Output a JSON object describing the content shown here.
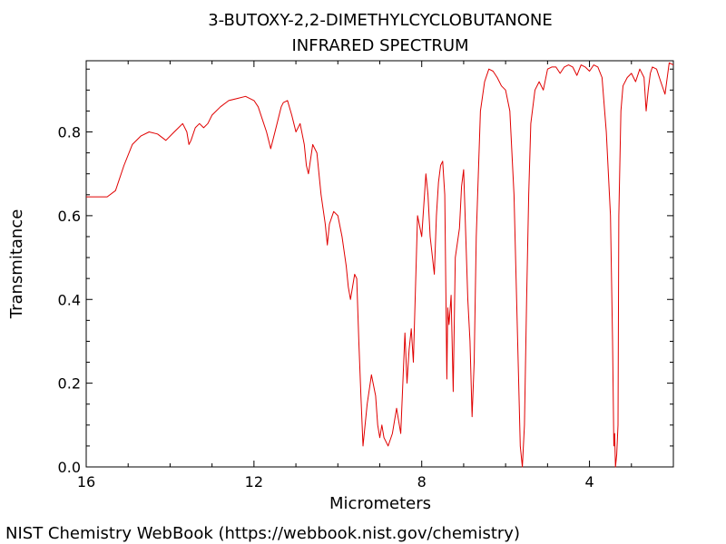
{
  "chart_data": {
    "type": "line",
    "title": "3-BUTOXY-2,2-DIMETHYLCYCLOBUTANONE",
    "subtitle": "INFRARED SPECTRUM",
    "xlabel": "Micrometers",
    "ylabel": "Transmitance",
    "xlim": [
      16,
      2
    ],
    "ylim": [
      0.0,
      0.97
    ],
    "x_ticks": [
      16,
      12,
      8,
      4
    ],
    "x_tick_labels": [
      "16",
      "12",
      "8",
      "4"
    ],
    "y_ticks": [
      0.0,
      0.2,
      0.4,
      0.6,
      0.8
    ],
    "y_tick_labels": [
      "0.0",
      "0.2",
      "0.4",
      "0.6",
      "0.8"
    ],
    "grid": false,
    "line_color": "#e00000",
    "series": [
      {
        "x": [
          16.0,
          15.5,
          15.3,
          15.1,
          14.9,
          14.7,
          14.5,
          14.3,
          14.1,
          13.9,
          13.8,
          13.7,
          13.6,
          13.55,
          13.5,
          13.4,
          13.3,
          13.2,
          13.1,
          13.0,
          12.8,
          12.6,
          12.4,
          12.2,
          12.0,
          11.9,
          11.8,
          11.7,
          11.65,
          11.6,
          11.5,
          11.4,
          11.35,
          11.3,
          11.2,
          11.1,
          11.0,
          10.9,
          10.8,
          10.75,
          10.7,
          10.6,
          10.5,
          10.4,
          10.3,
          10.25,
          10.2,
          10.1,
          10.0,
          9.9,
          9.8,
          9.75,
          9.7,
          9.6,
          9.55,
          9.5,
          9.45,
          9.4,
          9.3,
          9.2,
          9.1,
          9.05,
          9.0,
          8.95,
          8.9,
          8.8,
          8.7,
          8.6,
          8.5,
          8.45,
          8.4,
          8.35,
          8.3,
          8.25,
          8.2,
          8.1,
          8.0,
          7.9,
          7.85,
          7.8,
          7.7,
          7.65,
          7.6,
          7.55,
          7.5,
          7.45,
          7.4,
          7.38,
          7.35,
          7.3,
          7.25,
          7.2,
          7.1,
          7.05,
          7.0,
          6.9,
          6.85,
          6.8,
          6.75,
          6.7,
          6.6,
          6.5,
          6.4,
          6.3,
          6.2,
          6.1,
          6.0,
          5.9,
          5.8,
          5.75,
          5.7,
          5.65,
          5.6,
          5.55,
          5.5,
          5.45,
          5.4,
          5.3,
          5.2,
          5.1,
          5.0,
          4.9,
          4.8,
          4.7,
          4.6,
          4.5,
          4.4,
          4.3,
          4.2,
          4.1,
          4.0,
          3.9,
          3.8,
          3.7,
          3.6,
          3.5,
          3.45,
          3.42,
          3.4,
          3.38,
          3.35,
          3.32,
          3.3,
          3.25,
          3.2,
          3.1,
          3.0,
          2.9,
          2.8,
          2.7,
          2.65,
          2.6,
          2.55,
          2.5,
          2.4,
          2.3,
          2.2,
          2.1,
          2.0
        ],
        "y": [
          0.645,
          0.645,
          0.66,
          0.72,
          0.77,
          0.79,
          0.8,
          0.795,
          0.78,
          0.8,
          0.81,
          0.82,
          0.8,
          0.77,
          0.78,
          0.81,
          0.82,
          0.81,
          0.82,
          0.84,
          0.86,
          0.875,
          0.88,
          0.885,
          0.875,
          0.86,
          0.83,
          0.8,
          0.78,
          0.76,
          0.8,
          0.84,
          0.86,
          0.87,
          0.875,
          0.84,
          0.8,
          0.82,
          0.77,
          0.72,
          0.7,
          0.77,
          0.75,
          0.65,
          0.58,
          0.53,
          0.58,
          0.61,
          0.6,
          0.55,
          0.48,
          0.43,
          0.4,
          0.46,
          0.45,
          0.3,
          0.17,
          0.05,
          0.15,
          0.22,
          0.17,
          0.1,
          0.07,
          0.1,
          0.07,
          0.05,
          0.08,
          0.14,
          0.08,
          0.2,
          0.32,
          0.2,
          0.28,
          0.33,
          0.25,
          0.6,
          0.55,
          0.7,
          0.65,
          0.55,
          0.46,
          0.6,
          0.68,
          0.72,
          0.73,
          0.65,
          0.21,
          0.38,
          0.34,
          0.41,
          0.18,
          0.5,
          0.57,
          0.67,
          0.71,
          0.4,
          0.3,
          0.12,
          0.25,
          0.55,
          0.85,
          0.92,
          0.95,
          0.945,
          0.93,
          0.91,
          0.9,
          0.85,
          0.65,
          0.45,
          0.25,
          0.05,
          0.0,
          0.1,
          0.4,
          0.65,
          0.82,
          0.9,
          0.92,
          0.9,
          0.95,
          0.955,
          0.955,
          0.94,
          0.955,
          0.96,
          0.955,
          0.935,
          0.96,
          0.955,
          0.945,
          0.96,
          0.955,
          0.93,
          0.8,
          0.6,
          0.3,
          0.05,
          0.08,
          0.0,
          0.03,
          0.1,
          0.6,
          0.85,
          0.91,
          0.93,
          0.94,
          0.92,
          0.95,
          0.93,
          0.85,
          0.9,
          0.94,
          0.955,
          0.95,
          0.92,
          0.89,
          0.965,
          0.96
        ]
      }
    ]
  },
  "footer": {
    "credit": "NIST Chemistry WebBook (https://webbook.nist.gov/chemistry)"
  }
}
